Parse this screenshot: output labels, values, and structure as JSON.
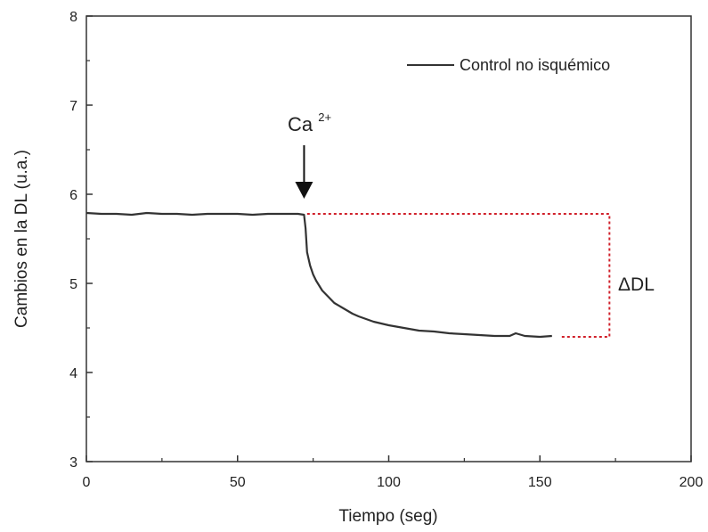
{
  "chart_data": {
    "type": "line",
    "xlabel": "Tiempo (seg)",
    "ylabel": "Cambios en la DL (u.a.)",
    "xlim": [
      0,
      200
    ],
    "ylim": [
      3,
      8
    ],
    "xticks": [
      0,
      50,
      100,
      150,
      200
    ],
    "yticks": [
      3,
      4,
      5,
      6,
      7,
      8
    ],
    "xtick_labels": [
      "0",
      "50",
      "100",
      "150",
      "200"
    ],
    "ytick_labels": [
      "3",
      "4",
      "5",
      "6",
      "7",
      "8"
    ],
    "grid": false,
    "legend_position": "top-right",
    "series": [
      {
        "name": "Control no isquémico",
        "color": "#333333",
        "x": [
          0,
          5,
          10,
          15,
          20,
          25,
          30,
          35,
          40,
          45,
          50,
          55,
          60,
          65,
          70,
          72,
          72.5,
          73,
          74,
          75,
          76,
          78,
          80,
          82,
          85,
          88,
          90,
          95,
          100,
          105,
          110,
          115,
          120,
          125,
          130,
          135,
          140,
          142,
          145,
          150,
          154
        ],
        "y": [
          5.79,
          5.78,
          5.78,
          5.77,
          5.79,
          5.78,
          5.78,
          5.77,
          5.78,
          5.78,
          5.78,
          5.77,
          5.78,
          5.78,
          5.78,
          5.77,
          5.62,
          5.35,
          5.2,
          5.1,
          5.03,
          4.92,
          4.85,
          4.78,
          4.72,
          4.66,
          4.63,
          4.57,
          4.53,
          4.5,
          4.47,
          4.46,
          4.44,
          4.43,
          4.42,
          4.41,
          4.41,
          4.44,
          4.41,
          4.4,
          4.41
        ]
      }
    ],
    "annotations": {
      "arrow_label_base": "Ca",
      "arrow_label_sup": "2+",
      "arrow_x": 72,
      "arrow_from_y": 6.55,
      "arrow_to_y": 5.95,
      "delta_label": "ΔDL",
      "delta_color": "#d0202a",
      "delta_x_start": 73,
      "delta_x_end": 173,
      "delta_y_top": 5.78,
      "delta_y_bottom": 4.4
    }
  }
}
